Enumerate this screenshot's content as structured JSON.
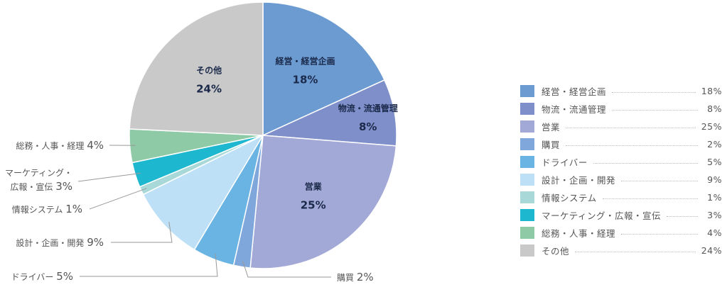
{
  "chart_data": {
    "type": "pie",
    "slices": [
      {
        "name": "経営・経営企画",
        "value": 18,
        "label": "18%",
        "color": "#6c9bd2"
      },
      {
        "name": "物流・流通管理",
        "value": 8,
        "label": "8%",
        "color": "#7f8fca"
      },
      {
        "name": "営業",
        "value": 25,
        "label": "25%",
        "color": "#a3a9d6"
      },
      {
        "name": "購買",
        "value": 2,
        "label": "2%",
        "color": "#7fa7dc"
      },
      {
        "name": "ドライバー",
        "value": 5,
        "label": "5%",
        "color": "#6ab4e4"
      },
      {
        "name": "設計・企画・開発",
        "value": 9,
        "label": "9%",
        "color": "#bde0f6"
      },
      {
        "name": "情報システム",
        "value": 1,
        "label": "1%",
        "color": "#a8d8d8"
      },
      {
        "name": "マーケティング・広報・宣伝",
        "value": 3,
        "label": "3%",
        "color": "#1db7cf"
      },
      {
        "name": "総務・人事・経理",
        "value": 4,
        "label": "4%",
        "color": "#8dcaa5"
      },
      {
        "name": "その他",
        "value": 24,
        "label": "24%",
        "color": "#c9c9c9"
      }
    ],
    "inside_labels": [
      {
        "slice": 0,
        "text": "経営・経営企画",
        "pct": "18%"
      },
      {
        "slice": 1,
        "text": "物流・流通管理",
        "pct": "8%"
      },
      {
        "slice": 2,
        "text": "営業",
        "pct": "25%"
      },
      {
        "slice": 9,
        "text": "その他",
        "pct": "24%"
      }
    ],
    "outside_labels": [
      {
        "slice": 3,
        "lines": [
          "購買"
        ],
        "pct": "2%"
      },
      {
        "slice": 4,
        "lines": [
          "ドライバー"
        ],
        "pct": "5%"
      },
      {
        "slice": 5,
        "lines": [
          "設計・企画・開発"
        ],
        "pct": "9%"
      },
      {
        "slice": 6,
        "lines": [
          "情報システム"
        ],
        "pct": "1%"
      },
      {
        "slice": 7,
        "lines": [
          "マーケティング・",
          "広報・宣伝"
        ],
        "pct": "3%"
      },
      {
        "slice": 8,
        "lines": [
          "総務・人事・経理"
        ],
        "pct": "4%"
      }
    ],
    "legend": [
      {
        "label": "経営・経営企画",
        "pct": "18%"
      },
      {
        "label": "物流・流通管理",
        "pct": "8%"
      },
      {
        "label": "営業",
        "pct": "25%"
      },
      {
        "label": "購買",
        "pct": "2%"
      },
      {
        "label": "ドライバー",
        "pct": "5%"
      },
      {
        "label": "設計・企画・開発",
        "pct": "9%"
      },
      {
        "label": "情報システム",
        "pct": "1%"
      },
      {
        "label": "マーケティング・広報・宣伝",
        "pct": "3%"
      },
      {
        "label": "総務・人事・経理",
        "pct": "4%"
      },
      {
        "label": "その他",
        "pct": "24%"
      }
    ],
    "legend_position": "right"
  }
}
